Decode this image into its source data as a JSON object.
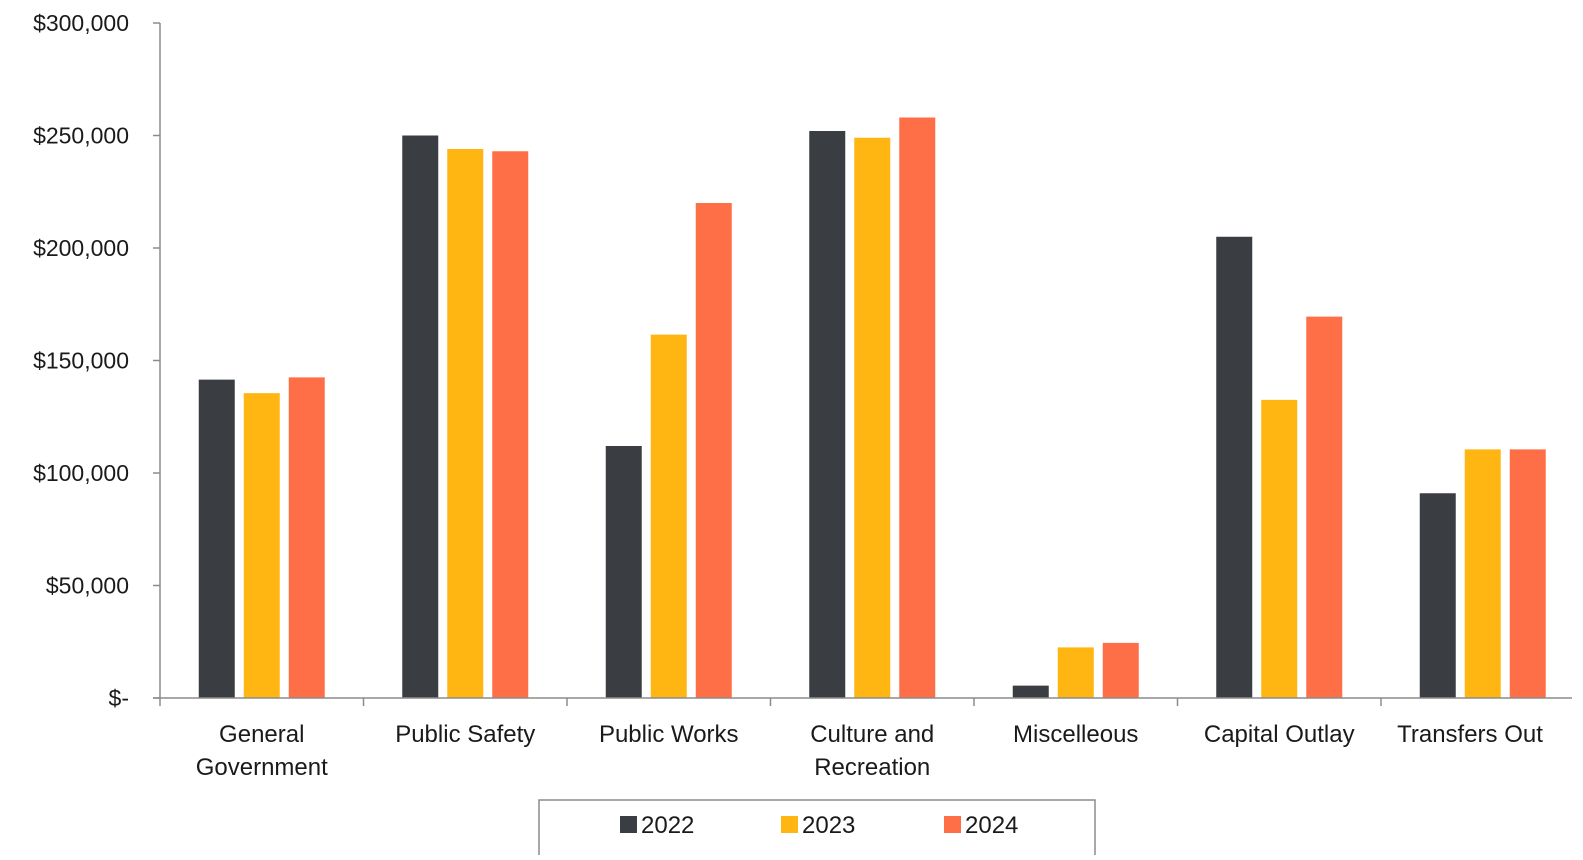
{
  "chart_data": {
    "type": "bar",
    "title": "",
    "xlabel": "",
    "ylabel": "",
    "ylim": [
      0,
      300000
    ],
    "ytick_values": [
      0,
      50000,
      100000,
      150000,
      200000,
      250000,
      300000
    ],
    "ytick_labels": [
      "$-",
      "$50,000",
      "$100,000",
      "$150,000",
      "$200,000",
      "$250,000",
      "$300,000"
    ],
    "categories": [
      [
        "General",
        "Government"
      ],
      [
        "Public Safety"
      ],
      [
        "Public Works"
      ],
      [
        "Culture and",
        "Recreation"
      ],
      [
        "Miscelleous"
      ],
      [
        "Capital Outlay"
      ],
      [
        "Transfers Out"
      ]
    ],
    "series": [
      {
        "name": "2022",
        "color": "#3a3d41",
        "values": [
          141500,
          250000,
          112000,
          252000,
          5500,
          205000,
          91000
        ]
      },
      {
        "name": "2023",
        "color": "#ffb612",
        "values": [
          135500,
          244000,
          161500,
          249000,
          22500,
          132500,
          110500
        ]
      },
      {
        "name": "2024",
        "color": "#ff6f47",
        "values": [
          142500,
          243000,
          220000,
          258000,
          24500,
          169500,
          110500
        ]
      }
    ],
    "grid": false,
    "legend_position": "bottom-center"
  }
}
